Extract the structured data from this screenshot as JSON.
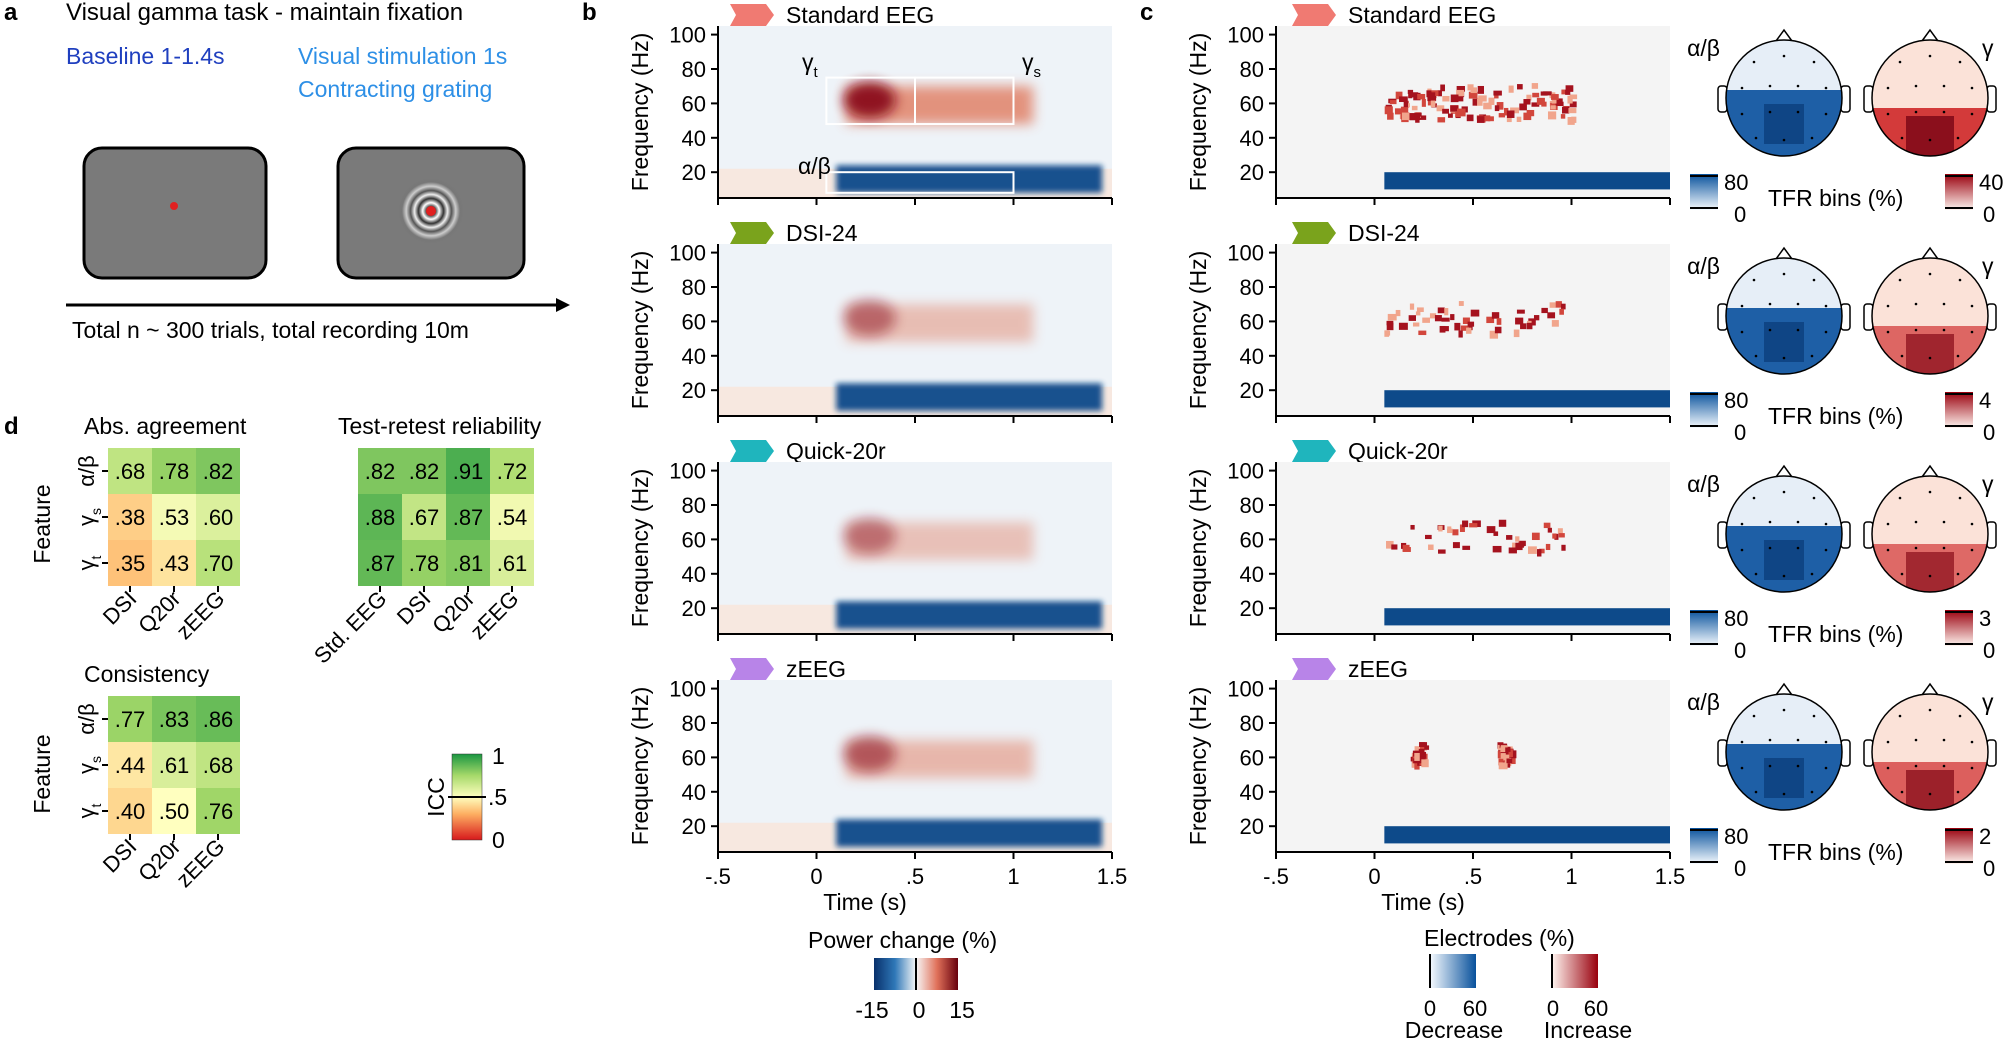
{
  "panel_letters": {
    "a": "a",
    "b": "b",
    "c": "c",
    "d": "d"
  },
  "panel_a": {
    "title": "Visual gamma task - maintain fixation",
    "baseline": "Baseline 1-1.4s",
    "stim_line1": "Visual stimulation 1s",
    "stim_line2": "Contracting grating",
    "timeline": "Total n ~ 300 trials, total recording 10m",
    "colors": {
      "baseline": "#1f3fbf",
      "stim": "#2d8fe6",
      "screen": "#7a7a7a",
      "fixation": "#e02020"
    }
  },
  "systems": [
    {
      "name": "Standard EEG",
      "color": "#f07a72",
      "alpha_max": "80",
      "gamma_max": "40",
      "alpha_min": "0",
      "gamma_min": "0",
      "gamma_strength": 1.0
    },
    {
      "name": "DSI-24",
      "color": "#7aa31c",
      "alpha_max": "80",
      "gamma_max": "4",
      "alpha_min": "0",
      "gamma_min": "0",
      "gamma_strength": 0.35
    },
    {
      "name": "Quick-20r",
      "color": "#1fb5bd",
      "alpha_max": "80",
      "gamma_max": "3",
      "alpha_min": "0",
      "gamma_min": "0",
      "gamma_strength": 0.3
    },
    {
      "name": "zEEG",
      "color": "#b884e8",
      "alpha_max": "80",
      "gamma_max": "2",
      "alpha_min": "0",
      "gamma_min": "0",
      "gamma_strength": 0.45
    }
  ],
  "spectro": {
    "ylabel": "Frequency (Hz)",
    "xlabel": "Time (s)",
    "yticks": [
      "20",
      "40",
      "60",
      "80",
      "100"
    ],
    "xticks": [
      "-.5",
      "0",
      ".5",
      "1",
      "1.5"
    ],
    "roi_labels": {
      "gamma_t": "γ",
      "gamma_t_sub": "t",
      "gamma_s": "γ",
      "gamma_s_sub": "s",
      "alpha_beta": "α/β"
    }
  },
  "topo": {
    "alpha_label": "α/β",
    "gamma_label": "γ",
    "bins_label": "TFR bins (%)"
  },
  "colorbars": {
    "power_title": "Power change (%)",
    "power_ticks": [
      "-15",
      "0",
      "15"
    ],
    "electrodes_title": "Electrodes (%)",
    "decrease_ticks": [
      "0",
      "60"
    ],
    "increase_ticks": [
      "0",
      "60"
    ],
    "decrease_label": "Decrease",
    "increase_label": "Increase",
    "icc_title": "ICC",
    "icc_ticks": [
      "1",
      ".5",
      "0"
    ]
  },
  "panel_d": {
    "feature_label": "Feature",
    "abs_title": "Abs. agreement",
    "cons_title": "Consistency",
    "trt_title": "Test-retest reliability",
    "row_labels": [
      {
        "main": "α/β",
        "sub": ""
      },
      {
        "main": "γ",
        "sub": "s"
      },
      {
        "main": "γ",
        "sub": "t"
      }
    ],
    "cols3": [
      "DSI",
      "Q20r",
      "zEEG"
    ],
    "cols4": [
      "Std. EEG",
      "DSI",
      "Q20r",
      "zEEG"
    ]
  },
  "chart_data": [
    {
      "type": "heatmap",
      "title": "Abs. agreement",
      "ylabel": "Feature",
      "rows": [
        "α/β",
        "γs",
        "γt"
      ],
      "cols": [
        "DSI",
        "Q20r",
        "zEEG"
      ],
      "values": [
        [
          0.68,
          0.78,
          0.82
        ],
        [
          0.38,
          0.53,
          0.6
        ],
        [
          0.35,
          0.43,
          0.7
        ]
      ],
      "labels": [
        [
          ".68",
          ".78",
          ".82"
        ],
        [
          ".38",
          ".53",
          ".60"
        ],
        [
          ".35",
          ".43",
          ".70"
        ]
      ],
      "clim": [
        0,
        1
      ]
    },
    {
      "type": "heatmap",
      "title": "Consistency",
      "ylabel": "Feature",
      "rows": [
        "α/β",
        "γs",
        "γt"
      ],
      "cols": [
        "DSI",
        "Q20r",
        "zEEG"
      ],
      "values": [
        [
          0.77,
          0.83,
          0.86
        ],
        [
          0.44,
          0.61,
          0.68
        ],
        [
          0.4,
          0.5,
          0.76
        ]
      ],
      "labels": [
        [
          ".77",
          ".83",
          ".86"
        ],
        [
          ".44",
          ".61",
          ".68"
        ],
        [
          ".40",
          ".50",
          ".76"
        ]
      ],
      "clim": [
        0,
        1
      ]
    },
    {
      "type": "heatmap",
      "title": "Test-retest reliability",
      "rows": [
        "α/β",
        "γs",
        "γt"
      ],
      "cols": [
        "Std. EEG",
        "DSI",
        "Q20r",
        "zEEG"
      ],
      "values": [
        [
          0.82,
          0.82,
          0.91,
          0.72
        ],
        [
          0.88,
          0.67,
          0.87,
          0.54
        ],
        [
          0.87,
          0.78,
          0.81,
          0.61
        ]
      ],
      "labels": [
        [
          ".82",
          ".82",
          ".91",
          ".72"
        ],
        [
          ".88",
          ".67",
          ".87",
          ".54"
        ],
        [
          ".87",
          ".78",
          ".81",
          ".61"
        ]
      ],
      "clim": [
        0,
        1
      ]
    }
  ]
}
